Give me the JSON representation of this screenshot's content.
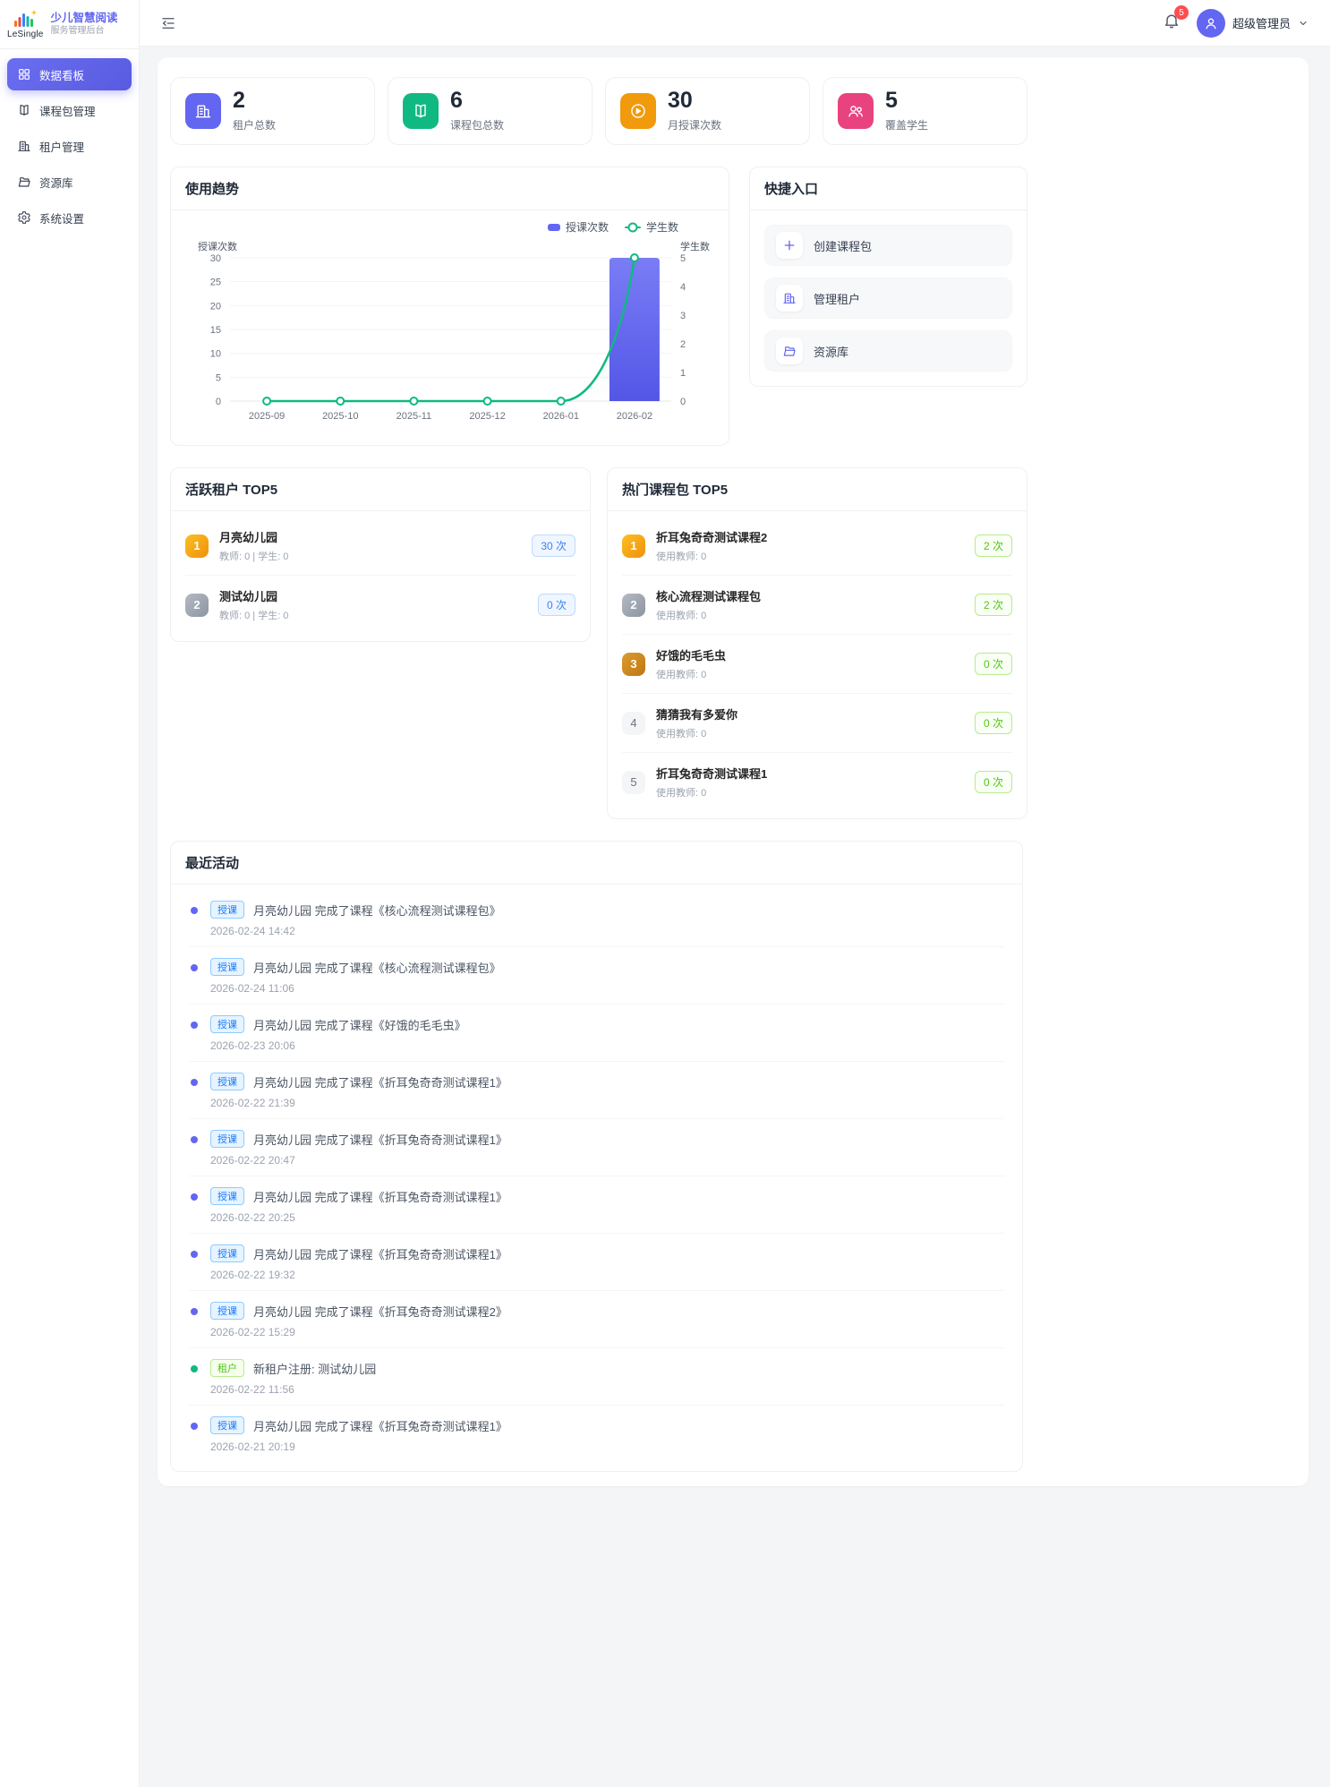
{
  "colors": {
    "primary": "#6366f1",
    "success": "#10b981",
    "warning": "#f59e0b",
    "pink": "#ec4899",
    "danger": "#ff4d4f"
  },
  "sidebar": {
    "logo_text": "LeSingle",
    "app_name": "少儿智慧阅读",
    "app_subtitle": "服务管理后台",
    "items": [
      {
        "label": "数据看板",
        "icon": "dashboard-icon",
        "active": true
      },
      {
        "label": "课程包管理",
        "icon": "book-icon",
        "active": false
      },
      {
        "label": "租户管理",
        "icon": "building-icon",
        "active": false
      },
      {
        "label": "资源库",
        "icon": "folder-icon",
        "active": false
      },
      {
        "label": "系统设置",
        "icon": "gear-icon",
        "active": false
      }
    ]
  },
  "header": {
    "notification_count": "5",
    "user_name": "超级管理员"
  },
  "stats": [
    {
      "value": "2",
      "label": "租户总数",
      "icon": "building-icon",
      "color": "#6366f1"
    },
    {
      "value": "6",
      "label": "课程包总数",
      "icon": "book-icon",
      "color": "#10b981"
    },
    {
      "value": "30",
      "label": "月授课次数",
      "icon": "play-icon",
      "color": "#f09a0c"
    },
    {
      "value": "5",
      "label": "覆盖学生",
      "icon": "users-icon",
      "color": "#e8437e"
    }
  ],
  "chart_data": {
    "type": "bar",
    "title": "使用趋势",
    "categories": [
      "2025-09",
      "2025-10",
      "2025-11",
      "2025-12",
      "2026-01",
      "2026-02"
    ],
    "series": [
      {
        "name": "授课次数",
        "type": "bar",
        "axis": "left",
        "color": "#6366f1",
        "values": [
          0,
          0,
          0,
          0,
          0,
          30
        ]
      },
      {
        "name": "学生数",
        "type": "line",
        "axis": "right",
        "color": "#10b981",
        "values": [
          0,
          0,
          0,
          0,
          0,
          5
        ]
      }
    ],
    "left_axis": {
      "label": "授课次数",
      "min": 0,
      "max": 30,
      "step": 5
    },
    "right_axis": {
      "label": "学生数",
      "min": 0,
      "max": 5,
      "step": 1
    },
    "grid": true,
    "legend_position": "top-right"
  },
  "quick_entry": {
    "title": "快捷入口",
    "items": [
      {
        "label": "创建课程包",
        "icon": "plus-icon"
      },
      {
        "label": "管理租户",
        "icon": "building-icon"
      },
      {
        "label": "资源库",
        "icon": "folder-icon"
      }
    ]
  },
  "active_tenants": {
    "title": "活跃租户 TOP5",
    "items": [
      {
        "rank": "1",
        "name": "月亮幼儿园",
        "meta": "教师: 0 | 学生: 0",
        "count": "30 次"
      },
      {
        "rank": "2",
        "name": "测试幼儿园",
        "meta": "教师: 0 | 学生: 0",
        "count": "0 次"
      }
    ]
  },
  "hot_packages": {
    "title": "热门课程包 TOP5",
    "items": [
      {
        "rank": "1",
        "name": "折耳兔奇奇测试课程2",
        "meta": "使用教师: 0",
        "count": "2 次"
      },
      {
        "rank": "2",
        "name": "核心流程测试课程包",
        "meta": "使用教师: 0",
        "count": "2 次"
      },
      {
        "rank": "3",
        "name": "好饿的毛毛虫",
        "meta": "使用教师: 0",
        "count": "0 次"
      },
      {
        "rank": "4",
        "name": "猜猜我有多爱你",
        "meta": "使用教师: 0",
        "count": "0 次"
      },
      {
        "rank": "5",
        "name": "折耳兔奇奇测试课程1",
        "meta": "使用教师: 0",
        "count": "0 次"
      }
    ]
  },
  "recent_activity": {
    "title": "最近活动",
    "items": [
      {
        "tag": "授课",
        "type": "teach",
        "text": "月亮幼儿园 完成了课程《核心流程测试课程包》",
        "time": "2026-02-24 14:42"
      },
      {
        "tag": "授课",
        "type": "teach",
        "text": "月亮幼儿园 完成了课程《核心流程测试课程包》",
        "time": "2026-02-24 11:06"
      },
      {
        "tag": "授课",
        "type": "teach",
        "text": "月亮幼儿园 完成了课程《好饿的毛毛虫》",
        "time": "2026-02-23 20:06"
      },
      {
        "tag": "授课",
        "type": "teach",
        "text": "月亮幼儿园 完成了课程《折耳兔奇奇测试课程1》",
        "time": "2026-02-22 21:39"
      },
      {
        "tag": "授课",
        "type": "teach",
        "text": "月亮幼儿园 完成了课程《折耳兔奇奇测试课程1》",
        "time": "2026-02-22 20:47"
      },
      {
        "tag": "授课",
        "type": "teach",
        "text": "月亮幼儿园 完成了课程《折耳兔奇奇测试课程1》",
        "time": "2026-02-22 20:25"
      },
      {
        "tag": "授课",
        "type": "teach",
        "text": "月亮幼儿园 完成了课程《折耳兔奇奇测试课程1》",
        "time": "2026-02-22 19:32"
      },
      {
        "tag": "授课",
        "type": "teach",
        "text": "月亮幼儿园 完成了课程《折耳兔奇奇测试课程2》",
        "time": "2026-02-22 15:29"
      },
      {
        "tag": "租户",
        "type": "tenant",
        "text": "新租户注册: 测试幼儿园",
        "time": "2026-02-22 11:56"
      },
      {
        "tag": "授课",
        "type": "teach",
        "text": "月亮幼儿园 完成了课程《折耳兔奇奇测试课程1》",
        "time": "2026-02-21 20:19"
      }
    ]
  }
}
